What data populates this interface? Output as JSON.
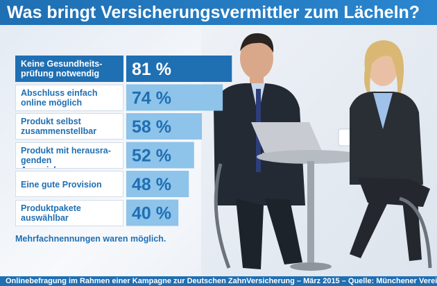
{
  "title": "Was bringt Versicherungsvermittler zum Lächeln?",
  "footnote": "Mehrfachnennungen waren möglich.",
  "source": "Onlinebefragung im Rahmen einer Kampagne zur Deutschen ZahnVersicherung – März 2015 – Quelle: Münchener Verein",
  "colors": {
    "brand_blue": "#1f6fb3",
    "bar_light": "#8ec3ea",
    "bar_dark": "#1f6fb3",
    "label_bg": "#ffffff"
  },
  "chart_data": {
    "type": "bar",
    "orientation": "horizontal",
    "title": "Was bringt Versicherungsvermittler zum Lächeln?",
    "categories": [
      "Keine Gesundheits-\nprüfung notwendig",
      "Abschluss einfach\nonline möglich",
      "Produkt selbst\nzusammenstellbar",
      "Produkt mit herausra-\ngenden Auszeichnungen",
      "Eine gute Provision",
      "Produktpakete\nauswählbar"
    ],
    "values": [
      81,
      74,
      58,
      52,
      48,
      40
    ],
    "value_labels": [
      "81 %",
      "74 %",
      "58 %",
      "52 %",
      "48 %",
      "40 %"
    ],
    "unit": "%",
    "xlim": [
      0,
      100
    ],
    "grid": false,
    "legend": "none"
  }
}
